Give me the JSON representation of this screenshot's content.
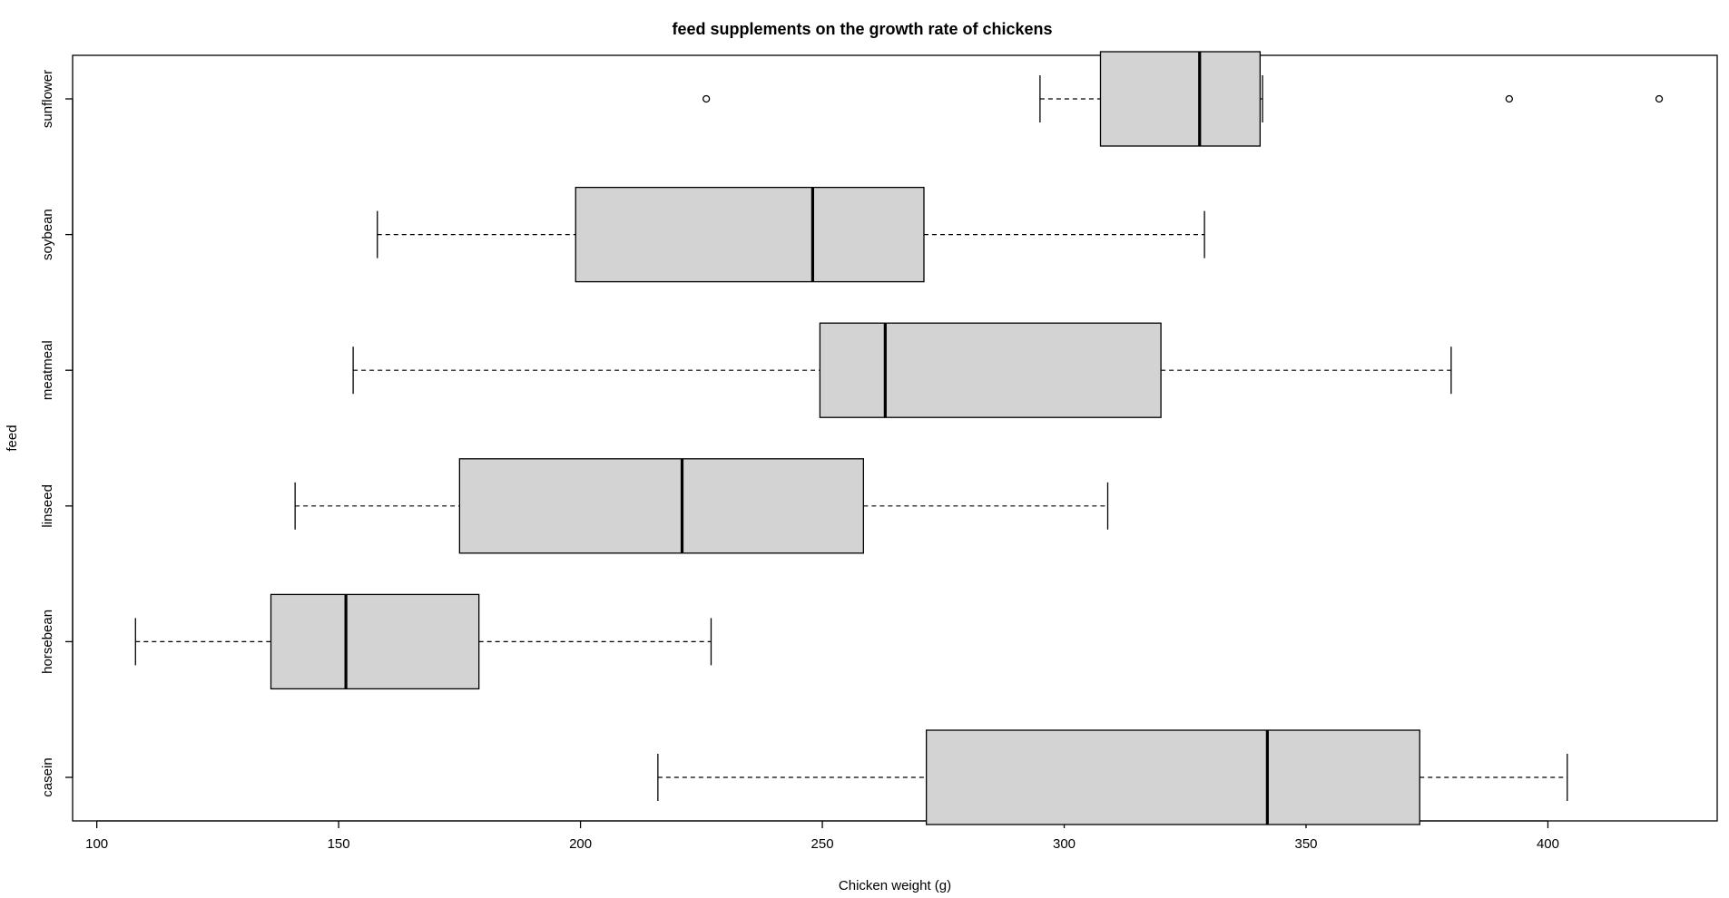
{
  "chart_data": {
    "type": "boxplot",
    "orientation": "horizontal",
    "title": "feed supplements on the growth rate of chickens",
    "xlabel": "Chicken weight (g)",
    "ylabel": "feed",
    "xlim": [
      95,
      435
    ],
    "xticks": [
      100,
      150,
      200,
      250,
      300,
      350,
      400
    ],
    "box_fill": "#d3d3d3",
    "categories": [
      "casein",
      "horsebean",
      "linseed",
      "meatmeal",
      "soybean",
      "sunflower"
    ],
    "boxes": [
      {
        "name": "casein",
        "min": 216,
        "q1": 271.5,
        "median": 342,
        "q3": 373.5,
        "max": 404,
        "outliers": []
      },
      {
        "name": "horsebean",
        "min": 108,
        "q1": 136,
        "median": 151.5,
        "q3": 179,
        "max": 227,
        "outliers": []
      },
      {
        "name": "linseed",
        "min": 141,
        "q1": 175,
        "median": 221,
        "q3": 258.5,
        "max": 309,
        "outliers": []
      },
      {
        "name": "meatmeal",
        "min": 153,
        "q1": 249.5,
        "median": 263,
        "q3": 320,
        "max": 380,
        "outliers": []
      },
      {
        "name": "soybean",
        "min": 158,
        "q1": 199,
        "median": 248,
        "q3": 271,
        "max": 329,
        "outliers": []
      },
      {
        "name": "sunflower",
        "min": 295,
        "q1": 307.5,
        "median": 328,
        "q3": 340.5,
        "max": 341,
        "outliers": [
          226,
          392,
          423
        ]
      }
    ]
  }
}
